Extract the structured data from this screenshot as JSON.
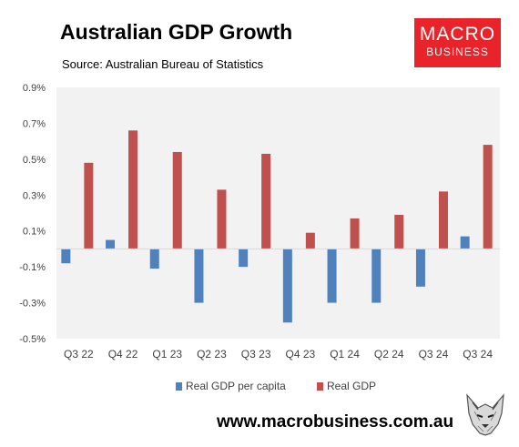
{
  "header": {
    "title": "Australian GDP Growth",
    "subtitle": "Source: Australian Bureau of Statistics"
  },
  "logo": {
    "top": "MACRO",
    "bottom": "BUSINESS",
    "color": "#e8232a"
  },
  "footer": {
    "url": "www.macrobusiness.com.au",
    "mascot_icon": "wolf-icon"
  },
  "chart_data": {
    "type": "bar",
    "categories": [
      "Q3 22",
      "Q4 22",
      "Q1 23",
      "Q2 23",
      "Q3 23",
      "Q4 23",
      "Q1 24",
      "Q2 24",
      "Q3 24",
      "Q3 24"
    ],
    "series": [
      {
        "name": "Real GDP per capita",
        "color": "#4f81bd",
        "values": [
          -0.08,
          0.05,
          -0.11,
          -0.3,
          -0.1,
          -0.41,
          -0.3,
          -0.3,
          -0.21,
          0.07
        ]
      },
      {
        "name": "Real GDP",
        "color": "#c0504d",
        "values": [
          0.48,
          0.66,
          0.54,
          0.33,
          0.53,
          0.09,
          0.17,
          0.19,
          0.32,
          0.58
        ]
      }
    ],
    "ylim": [
      -0.5,
      0.9
    ],
    "yticks": [
      "0.9%",
      "0.7%",
      "0.5%",
      "0.3%",
      "0.1%",
      "-0.1%",
      "-0.3%",
      "-0.5%"
    ],
    "ytick_values": [
      0.9,
      0.7,
      0.5,
      0.3,
      0.1,
      -0.1,
      -0.3,
      -0.5
    ],
    "grid": false,
    "plot_background": "#f2f2f2",
    "legend_position": "bottom"
  }
}
